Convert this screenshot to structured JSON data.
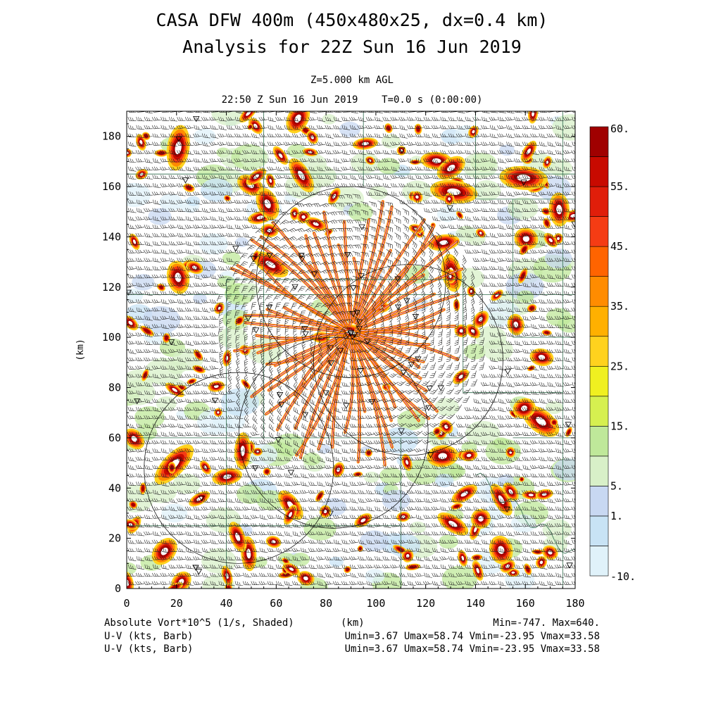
{
  "title_line1": "CASA DFW 400m (450x480x25, dx=0.4 km)",
  "title_line2": "Analysis for 22Z Sun 16 Jun 2019",
  "level_label": "Z=5.000 km AGL",
  "time_label": "22:50 Z Sun 16 Jun 2019    T=0.0 s (0:00:00)",
  "footer": {
    "field_label": "Absolute Vort*10^5 (1/s, Shaded)",
    "xunit": "(km)",
    "minmax": "Min=-747. Max=640.",
    "barb_label_1": "U-V (kts, Barb)",
    "barb_stats_1": "Umin=3.67 Umax=58.74 Vmin=-23.95 Vmax=33.58",
    "barb_label_2": "U-V (kts, Barb)",
    "barb_stats_2": "Umin=3.67 Umax=58.74 Vmin=-23.95 Vmax=33.58"
  },
  "chart_data": {
    "type": "heatmap",
    "field": "Absolute Vort*10^5 (1/s, Shaded)",
    "xlabel": "",
    "ylabel": "(km)",
    "xlim": [
      0,
      180
    ],
    "ylim": [
      0,
      190
    ],
    "xticks": [
      0,
      20,
      40,
      60,
      80,
      100,
      120,
      140,
      160,
      180
    ],
    "yticks": [
      0,
      20,
      40,
      60,
      80,
      100,
      120,
      140,
      160,
      180
    ],
    "value_min": -747,
    "value_max": 640,
    "colorbar": {
      "levels": [
        -10,
        -5,
        1,
        5,
        10,
        15,
        20,
        25,
        30,
        35,
        40,
        45,
        50,
        55,
        60
      ],
      "labels": [
        "60.",
        "55.",
        "45.",
        "35.",
        "25.",
        "15.",
        "5.",
        "1.",
        "-10."
      ],
      "label_values": [
        60,
        55,
        45,
        35,
        25,
        15,
        5,
        1,
        -10
      ],
      "colors": [
        "#e0f2fa",
        "#c8e3f5",
        "#c8d8f2",
        "#d8f0c8",
        "#bfe89a",
        "#d6f050",
        "#f0f020",
        "#ffd21e",
        "#ffb000",
        "#ff8c00",
        "#ff6400",
        "#f53c14",
        "#e01e0a",
        "#c80a00",
        "#a00000"
      ]
    },
    "radar_rings": [
      {
        "cx": 45,
        "cy": 48,
        "r": 38
      },
      {
        "cx": 83,
        "cy": 62,
        "r": 38
      },
      {
        "cx": 113,
        "cy": 91,
        "r": 38
      },
      {
        "cx": 90,
        "cy": 122,
        "r": 38
      }
    ],
    "vortex_center": [
      90,
      102
    ]
  }
}
